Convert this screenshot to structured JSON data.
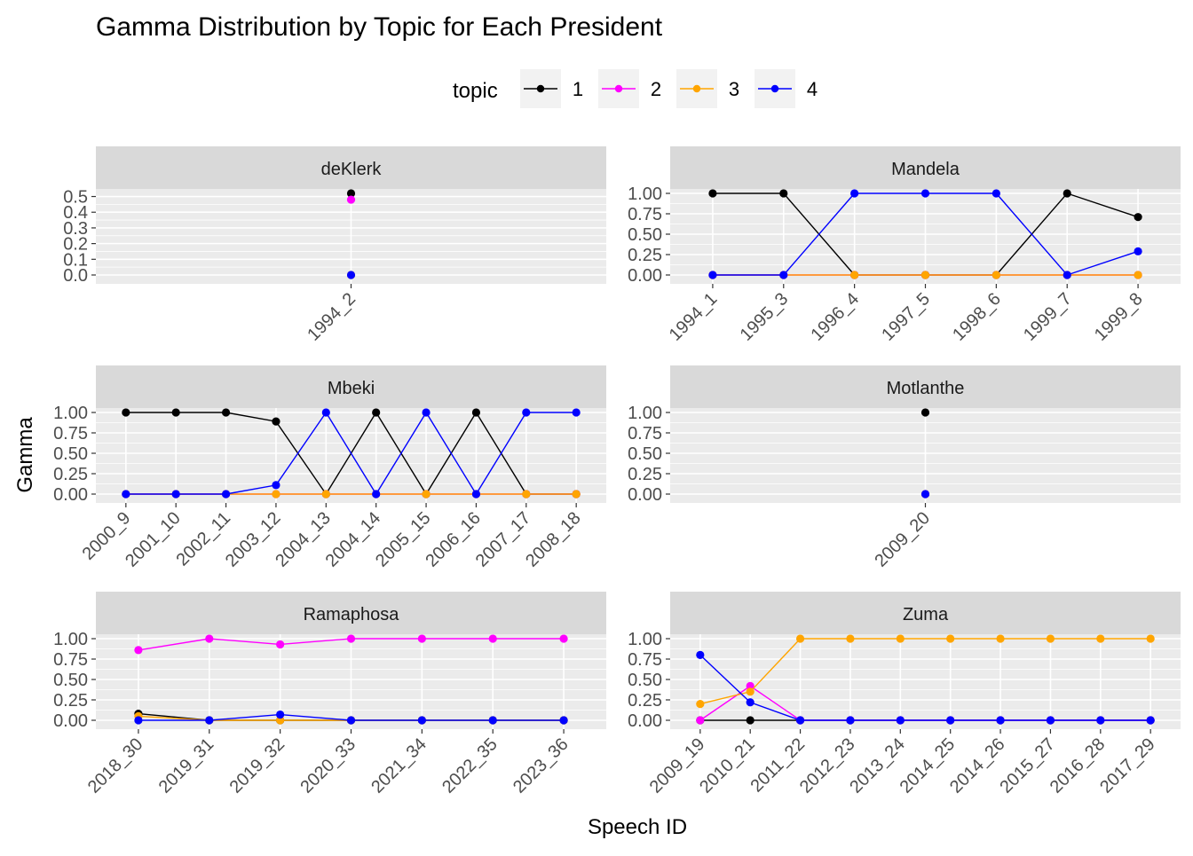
{
  "chart_data": {
    "type": "line",
    "title": "Gamma Distribution by Topic for Each President",
    "xlabel": "Speech ID",
    "ylabel": "Gamma",
    "grid": true,
    "legend": {
      "title": "topic",
      "position": "top",
      "entries": [
        {
          "name": "1",
          "color": "#000000"
        },
        {
          "name": "2",
          "color": "#ff00ff"
        },
        {
          "name": "3",
          "color": "#ffa500"
        },
        {
          "name": "4",
          "color": "#0000ff"
        }
      ]
    },
    "facets": [
      {
        "name": "deKlerk",
        "categories": [
          "1994_2"
        ],
        "ylim": [
          0,
          0.52
        ],
        "yticks": [
          0.0,
          0.1,
          0.2,
          0.3,
          0.4,
          0.5
        ],
        "ytick_labels": [
          "0.0",
          "0.1",
          "0.2",
          "0.3",
          "0.4",
          "0.5"
        ],
        "series": [
          {
            "name": "1",
            "values": [
              0.52
            ]
          },
          {
            "name": "2",
            "values": [
              0.48
            ]
          },
          {
            "name": "3",
            "values": [
              0.0
            ]
          },
          {
            "name": "4",
            "values": [
              0.0
            ]
          }
        ]
      },
      {
        "name": "Mandela",
        "categories": [
          "1994_1",
          "1995_3",
          "1996_4",
          "1997_5",
          "1998_6",
          "1999_7",
          "1999_8"
        ],
        "ylim": [
          0,
          1
        ],
        "yticks": [
          0,
          0.25,
          0.5,
          0.75,
          1
        ],
        "ytick_labels": [
          "0.00",
          "0.25",
          "0.50",
          "0.75",
          "1.00"
        ],
        "series": [
          {
            "name": "1",
            "values": [
              1.0,
              1.0,
              0.0,
              0.0,
              0.0,
              1.0,
              0.71
            ]
          },
          {
            "name": "2",
            "values": [
              0.0,
              0.0,
              0.0,
              0.0,
              0.0,
              0.0,
              0.0
            ]
          },
          {
            "name": "3",
            "values": [
              0.0,
              0.0,
              0.0,
              0.0,
              0.0,
              0.0,
              0.0
            ]
          },
          {
            "name": "4",
            "values": [
              0.0,
              0.0,
              1.0,
              1.0,
              1.0,
              0.0,
              0.29
            ]
          }
        ]
      },
      {
        "name": "Mbeki",
        "categories": [
          "2000_9",
          "2001_10",
          "2002_11",
          "2003_12",
          "2004_13",
          "2004_14",
          "2005_15",
          "2006_16",
          "2007_17",
          "2008_18"
        ],
        "ylim": [
          0,
          1
        ],
        "yticks": [
          0,
          0.25,
          0.5,
          0.75,
          1
        ],
        "ytick_labels": [
          "0.00",
          "0.25",
          "0.50",
          "0.75",
          "1.00"
        ],
        "series": [
          {
            "name": "1",
            "values": [
              1.0,
              1.0,
              1.0,
              0.89,
              0.0,
              1.0,
              0.0,
              1.0,
              0.0,
              0.0
            ]
          },
          {
            "name": "2",
            "values": [
              0.0,
              0.0,
              0.0,
              0.0,
              0.0,
              0.0,
              0.0,
              0.0,
              0.0,
              0.0
            ]
          },
          {
            "name": "3",
            "values": [
              0.0,
              0.0,
              0.0,
              0.0,
              0.0,
              0.0,
              0.0,
              0.0,
              0.0,
              0.0
            ]
          },
          {
            "name": "4",
            "values": [
              0.0,
              0.0,
              0.0,
              0.11,
              1.0,
              0.0,
              1.0,
              0.0,
              1.0,
              1.0
            ]
          }
        ]
      },
      {
        "name": "Motlanthe",
        "categories": [
          "2009_20"
        ],
        "ylim": [
          0,
          1
        ],
        "yticks": [
          0,
          0.25,
          0.5,
          0.75,
          1
        ],
        "ytick_labels": [
          "0.00",
          "0.25",
          "0.50",
          "0.75",
          "1.00"
        ],
        "series": [
          {
            "name": "1",
            "values": [
              1.0
            ]
          },
          {
            "name": "2",
            "values": [
              0.0
            ]
          },
          {
            "name": "3",
            "values": [
              0.0
            ]
          },
          {
            "name": "4",
            "values": [
              0.0
            ]
          }
        ]
      },
      {
        "name": "Ramaphosa",
        "categories": [
          "2018_30",
          "2019_31",
          "2019_32",
          "2020_33",
          "2021_34",
          "2022_35",
          "2023_36"
        ],
        "ylim": [
          0,
          1
        ],
        "yticks": [
          0,
          0.25,
          0.5,
          0.75,
          1
        ],
        "ytick_labels": [
          "0.00",
          "0.25",
          "0.50",
          "0.75",
          "1.00"
        ],
        "series": [
          {
            "name": "1",
            "values": [
              0.08,
              0.0,
              0.0,
              0.0,
              0.0,
              0.0,
              0.0
            ]
          },
          {
            "name": "2",
            "values": [
              0.86,
              1.0,
              0.93,
              1.0,
              1.0,
              1.0,
              1.0
            ]
          },
          {
            "name": "3",
            "values": [
              0.05,
              0.0,
              0.0,
              0.0,
              0.0,
              0.0,
              0.0
            ]
          },
          {
            "name": "4",
            "values": [
              0.0,
              0.0,
              0.07,
              0.0,
              0.0,
              0.0,
              0.0
            ]
          }
        ]
      },
      {
        "name": "Zuma",
        "categories": [
          "2009_19",
          "2010_21",
          "2011_22",
          "2012_23",
          "2013_24",
          "2014_25",
          "2014_26",
          "2015_27",
          "2016_28",
          "2017_29"
        ],
        "ylim": [
          0,
          1
        ],
        "yticks": [
          0,
          0.25,
          0.5,
          0.75,
          1
        ],
        "ytick_labels": [
          "0.00",
          "0.25",
          "0.50",
          "0.75",
          "1.00"
        ],
        "series": [
          {
            "name": "1",
            "values": [
              0.0,
              0.0,
              0.0,
              0.0,
              0.0,
              0.0,
              0.0,
              0.0,
              0.0,
              0.0
            ]
          },
          {
            "name": "2",
            "values": [
              0.0,
              0.42,
              0.0,
              0.0,
              0.0,
              0.0,
              0.0,
              0.0,
              0.0,
              0.0
            ]
          },
          {
            "name": "3",
            "values": [
              0.2,
              0.35,
              1.0,
              1.0,
              1.0,
              1.0,
              1.0,
              1.0,
              1.0,
              1.0
            ]
          },
          {
            "name": "4",
            "values": [
              0.8,
              0.22,
              0.0,
              0.0,
              0.0,
              0.0,
              0.0,
              0.0,
              0.0,
              0.0
            ]
          }
        ]
      }
    ]
  }
}
